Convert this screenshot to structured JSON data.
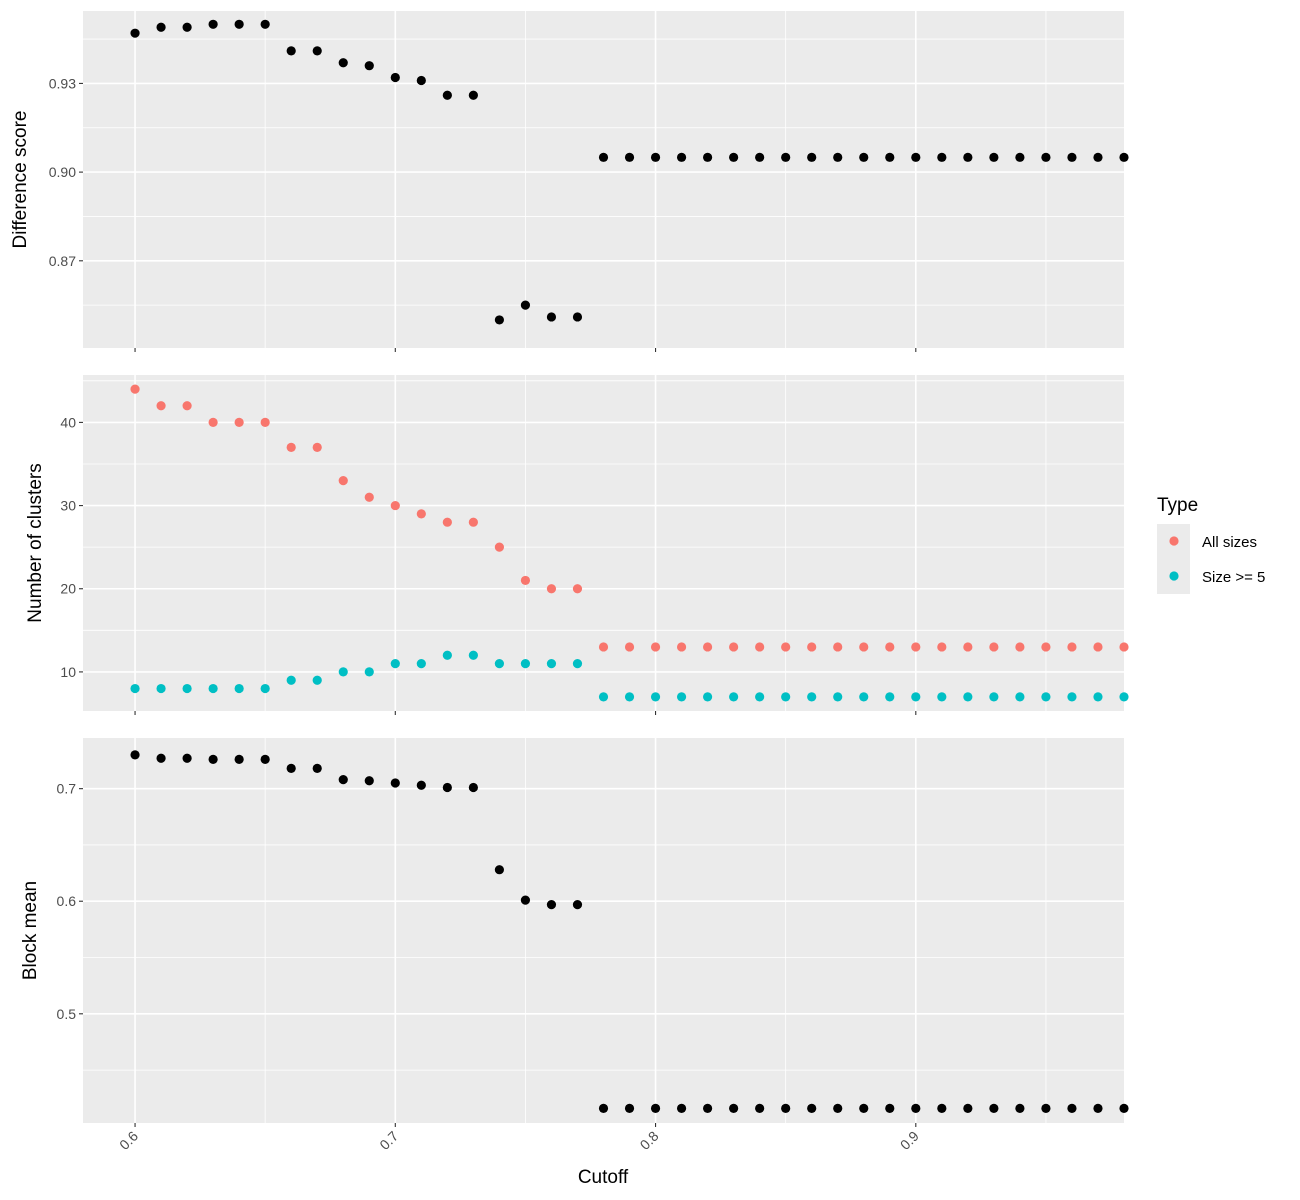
{
  "chart_data": {
    "type": "scatter",
    "xlabel": "Cutoff",
    "xlim": [
      0.58,
      0.98
    ],
    "x_ticks": [
      0.6,
      0.7,
      0.8,
      0.9
    ],
    "x_tick_labels": [
      "0.6",
      "0.7",
      "0.8",
      "0.9"
    ],
    "x": [
      0.6,
      0.61,
      0.62,
      0.63,
      0.64,
      0.65,
      0.66,
      0.67,
      0.68,
      0.69,
      0.7,
      0.71,
      0.72,
      0.73,
      0.74,
      0.75,
      0.76,
      0.77,
      0.78,
      0.79,
      0.8,
      0.81,
      0.82,
      0.83,
      0.84,
      0.85,
      0.86,
      0.87,
      0.88,
      0.89,
      0.9,
      0.91,
      0.92,
      0.93,
      0.94,
      0.95,
      0.96,
      0.97,
      0.98
    ],
    "grid": true,
    "panel_background": "#ebebeb",
    "grid_color": "#ffffff",
    "legend": {
      "title": "Type",
      "position": "right",
      "entries": [
        {
          "label": "All sizes",
          "color": "#f8766d"
        },
        {
          "label": "Size >= 5",
          "color": "#00bfc4"
        }
      ]
    },
    "panels": [
      {
        "ylabel": "Difference score",
        "ylim": [
          0.8405,
          0.9545
        ],
        "y_ticks": [
          0.87,
          0.9,
          0.93
        ],
        "y_tick_labels": [
          "0.87",
          "0.90",
          "0.93"
        ],
        "series": [
          {
            "color": "#000000",
            "values": [
              0.947,
              0.949,
              0.949,
              0.95,
              0.95,
              0.95,
              0.941,
              0.941,
              0.937,
              0.936,
              0.932,
              0.931,
              0.926,
              0.926,
              0.85,
              0.855,
              0.851,
              0.851,
              0.905,
              0.905,
              0.905,
              0.905,
              0.905,
              0.905,
              0.905,
              0.905,
              0.905,
              0.905,
              0.905,
              0.905,
              0.905,
              0.905,
              0.905,
              0.905,
              0.905,
              0.905,
              0.905,
              0.905,
              0.905
            ]
          }
        ]
      },
      {
        "ylabel": "Number of clusters",
        "ylim": [
          5.3,
          45.7
        ],
        "y_ticks": [
          10,
          20,
          30,
          40
        ],
        "y_tick_labels": [
          "10",
          "20",
          "30",
          "40"
        ],
        "series": [
          {
            "name": "All sizes",
            "color": "#f8766d",
            "values": [
              44,
              42,
              42,
              40,
              40,
              40,
              37,
              37,
              33,
              31,
              30,
              29,
              28,
              28,
              25,
              21,
              20,
              20,
              13,
              13,
              13,
              13,
              13,
              13,
              13,
              13,
              13,
              13,
              13,
              13,
              13,
              13,
              13,
              13,
              13,
              13,
              13,
              13,
              13
            ]
          },
          {
            "name": "Size >= 5",
            "color": "#00bfc4",
            "values": [
              8,
              8,
              8,
              8,
              8,
              8,
              9,
              9,
              10,
              10,
              11,
              11,
              12,
              12,
              11,
              11,
              11,
              11,
              7,
              7,
              7,
              7,
              7,
              7,
              7,
              7,
              7,
              7,
              7,
              7,
              7,
              7,
              7,
              7,
              7,
              7,
              7,
              7,
              7
            ]
          }
        ]
      },
      {
        "ylabel": "Block mean",
        "ylim": [
          0.403,
          0.745
        ],
        "y_ticks": [
          0.5,
          0.6,
          0.7
        ],
        "y_tick_labels": [
          "0.5",
          "0.6",
          "0.7"
        ],
        "series": [
          {
            "color": "#000000",
            "values": [
              0.73,
              0.727,
              0.727,
              0.726,
              0.726,
              0.726,
              0.718,
              0.718,
              0.708,
              0.707,
              0.705,
              0.703,
              0.701,
              0.701,
              0.628,
              0.601,
              0.597,
              0.597,
              0.416,
              0.416,
              0.416,
              0.416,
              0.416,
              0.416,
              0.416,
              0.416,
              0.416,
              0.416,
              0.416,
              0.416,
              0.416,
              0.416,
              0.416,
              0.416,
              0.416,
              0.416,
              0.416,
              0.416,
              0.416
            ]
          }
        ]
      }
    ]
  }
}
